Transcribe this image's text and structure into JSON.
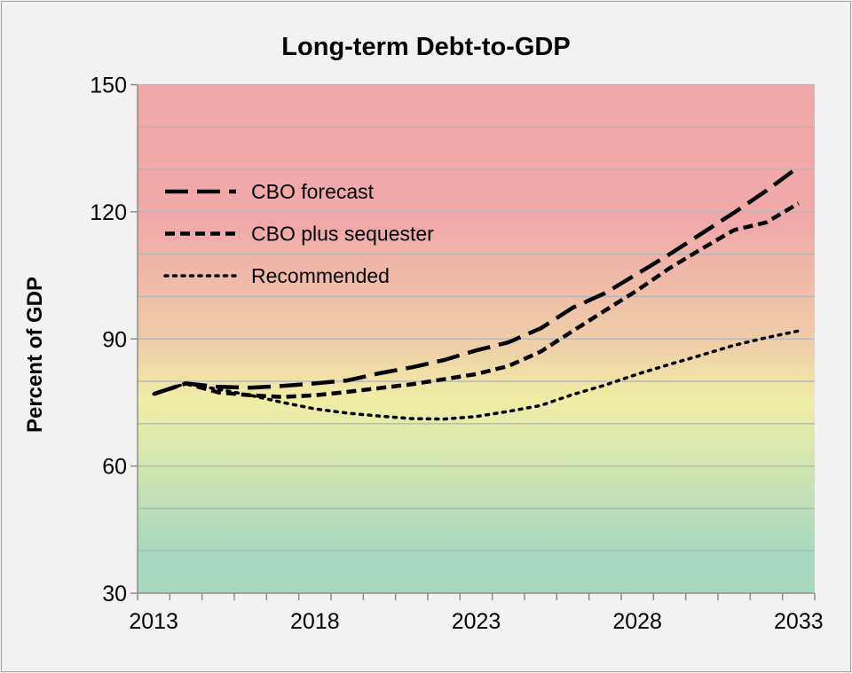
{
  "chart_data": {
    "type": "line",
    "title": "Long-term Debt-to-GDP",
    "xlabel": "",
    "ylabel": "Percent of GDP",
    "ylim": [
      30,
      150
    ],
    "yticks": [
      30,
      60,
      90,
      120,
      150
    ],
    "ygrid_step": 10,
    "grid": true,
    "legend_position": "top-left",
    "x": [
      2013,
      2014,
      2015,
      2016,
      2017,
      2018,
      2019,
      2020,
      2021,
      2022,
      2023,
      2024,
      2025,
      2026,
      2027,
      2028,
      2029,
      2030,
      2031,
      2032,
      2033
    ],
    "xtick_labels": [
      "2013",
      "2018",
      "2023",
      "2028",
      "2033"
    ],
    "background_bands": {
      "high": "#f0a8a8",
      "mid_high": "#efd0a8",
      "mid": "#f0eea6",
      "low": "#a8d8c0"
    },
    "series": [
      {
        "name": "CBO forecast",
        "style": "long-dash",
        "color": "#000000",
        "values": [
          77,
          79.5,
          78.7,
          78.5,
          78.9,
          79.5,
          80.2,
          81.9,
          83.3,
          85.0,
          87.3,
          89.2,
          92.5,
          97.4,
          100.8,
          105.4,
          110.0,
          114.9,
          119.8,
          125.0,
          130.6
        ]
      },
      {
        "name": "CBO plus sequester",
        "style": "dash",
        "color": "#000000",
        "values": [
          77,
          79.5,
          77.4,
          76.7,
          76.3,
          76.7,
          77.5,
          78.4,
          79.3,
          80.5,
          81.7,
          83.6,
          87.0,
          91.9,
          96.7,
          101.5,
          106.7,
          111.3,
          115.7,
          117.5,
          122.0
        ]
      },
      {
        "name": "Recommended",
        "style": "dot",
        "color": "#000000",
        "values": [
          77,
          79.5,
          78.1,
          76.7,
          75.0,
          73.5,
          72.5,
          71.8,
          71.2,
          71.1,
          71.7,
          72.9,
          74.3,
          76.9,
          79.1,
          81.7,
          84.0,
          86.2,
          88.5,
          90.3,
          91.9
        ]
      }
    ]
  }
}
